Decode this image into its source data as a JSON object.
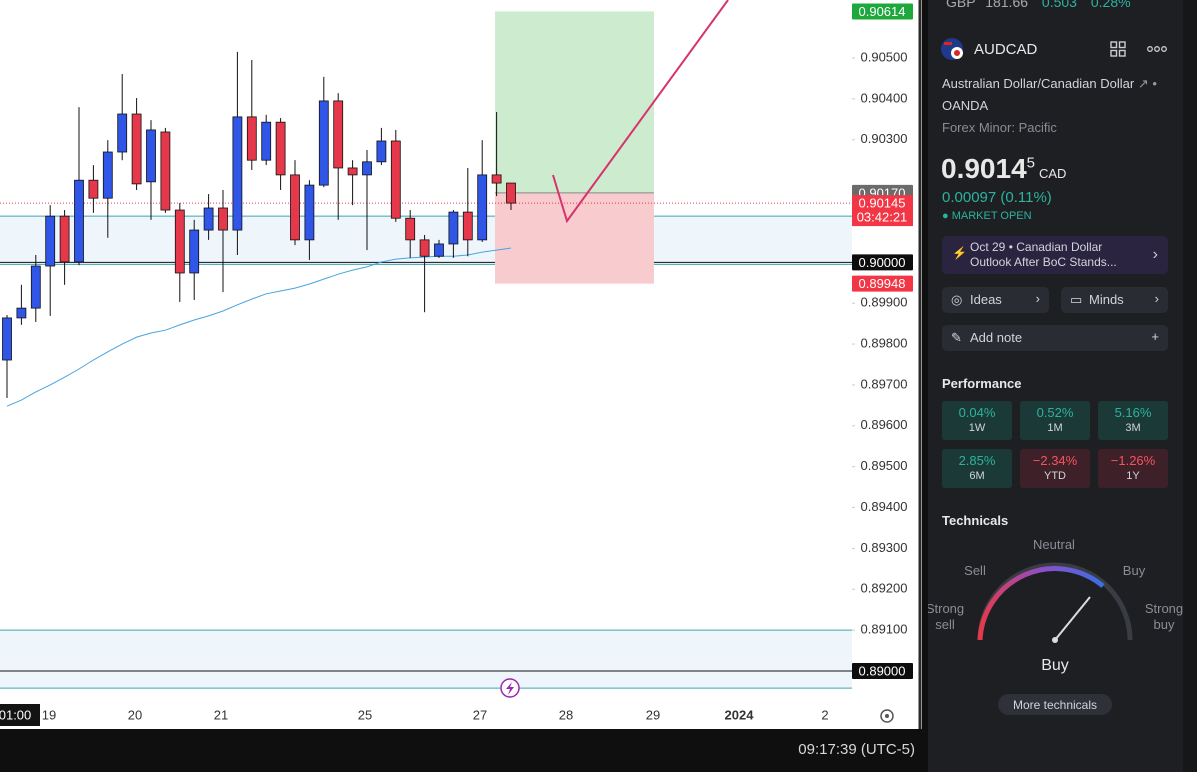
{
  "chart": {
    "type": "candlestick",
    "up_color": "#3056e8",
    "down_color": "#e5394b",
    "ylim": [
      0.88929,
      0.90642
    ],
    "yticks": [
      {
        "value": 0.905,
        "label": "0.90500"
      },
      {
        "value": 0.904,
        "label": "0.90400"
      },
      {
        "value": 0.903,
        "label": "0.90300"
      },
      {
        "value": 0.899,
        "label": "0.89900"
      },
      {
        "value": 0.898,
        "label": "0.89800"
      },
      {
        "value": 0.897,
        "label": "0.89700"
      },
      {
        "value": 0.896,
        "label": "0.89600"
      },
      {
        "value": 0.895,
        "label": "0.89500"
      },
      {
        "value": 0.894,
        "label": "0.89400"
      },
      {
        "value": 0.893,
        "label": "0.89300"
      },
      {
        "value": 0.892,
        "label": "0.89200"
      },
      {
        "value": 0.891,
        "label": "0.89100"
      }
    ],
    "xlabels": [
      "01:00",
      "19",
      "20",
      "21",
      "25",
      "27",
      "28",
      "29",
      "2024",
      "2"
    ],
    "candles": [
      [
        0.89761,
        0.89871,
        0.89668,
        0.89864
      ],
      [
        0.89864,
        0.89945,
        0.89847,
        0.89888
      ],
      [
        0.89888,
        0.90018,
        0.89854,
        0.89991
      ],
      [
        0.89991,
        0.9014,
        0.89869,
        0.90113
      ],
      [
        0.90113,
        0.90128,
        0.89945,
        0.90001
      ],
      [
        0.90001,
        0.9038,
        0.89993,
        0.90201
      ],
      [
        0.90201,
        0.90238,
        0.90121,
        0.90157
      ],
      [
        0.90157,
        0.90299,
        0.9006,
        0.9027
      ],
      [
        0.9027,
        0.90461,
        0.9025,
        0.90363
      ],
      [
        0.90363,
        0.90402,
        0.90177,
        0.90192
      ],
      [
        0.90197,
        0.90348,
        0.90104,
        0.90324
      ],
      [
        0.90319,
        0.90329,
        0.90121,
        0.90128
      ],
      [
        0.90128,
        0.90145,
        0.89903,
        0.89974
      ],
      [
        0.89974,
        0.90104,
        0.89908,
        0.90079
      ],
      [
        0.90079,
        0.90167,
        0.90055,
        0.90133
      ],
      [
        0.90133,
        0.90177,
        0.89927,
        0.90079
      ],
      [
        0.90079,
        0.90515,
        0.90018,
        0.90356
      ],
      [
        0.90356,
        0.90495,
        0.90226,
        0.9025
      ],
      [
        0.9025,
        0.90361,
        0.90238,
        0.90343
      ],
      [
        0.90343,
        0.90353,
        0.90177,
        0.90214
      ],
      [
        0.90214,
        0.9025,
        0.90042,
        0.90055
      ],
      [
        0.90055,
        0.90201,
        0.90006,
        0.90189
      ],
      [
        0.90189,
        0.90454,
        0.90184,
        0.90395
      ],
      [
        0.90395,
        0.90414,
        0.90104,
        0.90231
      ],
      [
        0.90231,
        0.9025,
        0.9014,
        0.90214
      ],
      [
        0.90214,
        0.90275,
        0.9003,
        0.90246
      ],
      [
        0.90246,
        0.90329,
        0.90238,
        0.90297
      ],
      [
        0.90297,
        0.90324,
        0.90099,
        0.90108
      ],
      [
        0.90108,
        0.90128,
        0.90011,
        0.90055
      ],
      [
        0.90055,
        0.90067,
        0.89878,
        0.90015
      ],
      [
        0.90015,
        0.90055,
        0.90011,
        0.90045
      ],
      [
        0.90045,
        0.90128,
        0.90011,
        0.90123
      ],
      [
        0.90123,
        0.90231,
        0.90015,
        0.90055
      ],
      [
        0.90055,
        0.90299,
        0.9005,
        0.90214
      ],
      [
        0.90214,
        0.90368,
        0.90162,
        0.90194
      ],
      [
        0.90194,
        0.90194,
        0.90128,
        0.90145
      ]
    ],
    "ma": {
      "color": "#4aa3df",
      "values": [
        0.89648,
        0.89663,
        0.89683,
        0.897,
        0.89719,
        0.89739,
        0.89761,
        0.89781,
        0.898,
        0.89817,
        0.89827,
        0.89834,
        0.89847,
        0.89859,
        0.89869,
        0.89881,
        0.89896,
        0.8991,
        0.89923,
        0.8993,
        0.89937,
        0.89947,
        0.89959,
        0.89971,
        0.89981,
        0.89989,
        0.90001,
        0.90008,
        0.90011,
        0.90013,
        0.90015,
        0.90015,
        0.90018,
        0.90025,
        0.9003,
        0.90035
      ]
    },
    "zones": [
      [
        0.90113,
        0.89995
      ],
      [
        0.891,
        0.88958
      ]
    ],
    "levels": [
      {
        "value": 0.9,
        "label": "0.90000"
      },
      {
        "value": 0.89,
        "label": "0.89000"
      }
    ],
    "position": {
      "target": {
        "value": 0.90614,
        "label": "0.90614"
      },
      "entry": {
        "value": 0.9017,
        "label": "0.90170"
      },
      "stop": {
        "value": 0.89948,
        "label": "0.89948"
      }
    },
    "last_price": {
      "value": 0.90145,
      "label": "0.90145",
      "countdown": "03:42:21"
    }
  },
  "status_bar": {
    "time": "09:17:39 (UTC-5)"
  },
  "sidebar": {
    "ticker": [
      "GBP",
      "181.66",
      "0.503",
      "0.28%"
    ],
    "symbol": "AUDCAD",
    "description": "Australian Dollar/Canadian Dollar",
    "exchange": "OANDA",
    "category": "Forex Minor: Pacific",
    "price": "0.9014",
    "price_last_digit": "5",
    "currency": "CAD",
    "change": "0.00097 (0.11%)",
    "market_status": "MARKET OPEN",
    "news": {
      "date": "Oct 29",
      "headline": "Canadian Dollar",
      "headline_2": "Outlook After BoC Stands..."
    },
    "buttons": [
      "Ideas",
      "Minds",
      "Add note"
    ],
    "performance": {
      "title": "Performance",
      "tiles": [
        [
          "0.04%",
          "1W"
        ],
        [
          "0.52%",
          "1M"
        ],
        [
          "5.16%",
          "3M"
        ],
        [
          "2.85%",
          "6M"
        ],
        [
          "−2.34%",
          "YTD"
        ],
        [
          "−1.26%",
          "1Y"
        ]
      ]
    },
    "technicals": {
      "title": "Technicals",
      "neutral": "Neutral",
      "sell": "Sell",
      "buy": "Buy",
      "strong_sell": [
        "Strong",
        "sell"
      ],
      "strong_buy": [
        "Strong",
        "buy"
      ],
      "result": "Buy",
      "more": "More technicals"
    }
  }
}
